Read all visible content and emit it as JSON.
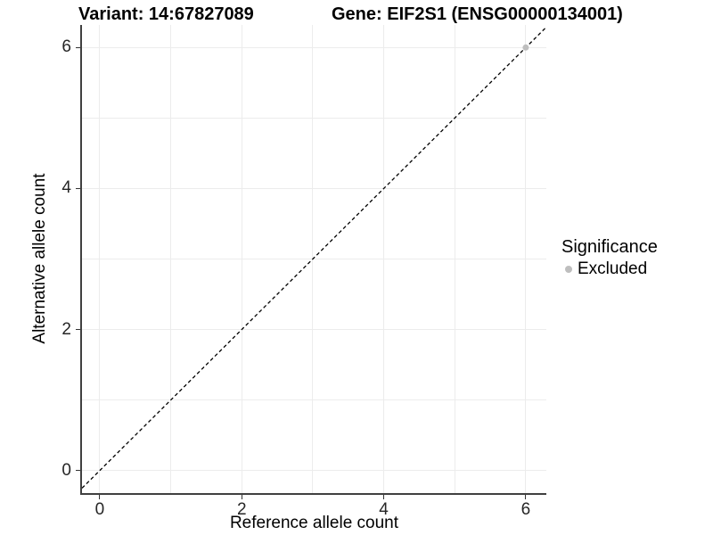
{
  "chart_data": {
    "type": "scatter",
    "title_left": "Variant: 14:67827089",
    "title_right": "Gene: EIF2S1 (ENSG00000134001)",
    "xlabel": "Reference allele count",
    "ylabel": "Alternative allele count",
    "xlim": [
      -0.25,
      6.29
    ],
    "ylim": [
      -0.32,
      6.32
    ],
    "x_ticks": [
      0,
      2,
      4,
      6
    ],
    "y_ticks": [
      0,
      2,
      4,
      6
    ],
    "x_gridlines": [
      0,
      1,
      2,
      3,
      4,
      5,
      6
    ],
    "y_gridlines": [
      0,
      1,
      2,
      3,
      4,
      5,
      6
    ],
    "grid_on": true,
    "grid_color": "#ececec",
    "axis_color": "#404040",
    "identity_line": {
      "style": "dashed",
      "slope": 1,
      "intercept": 0,
      "color": "#000000"
    },
    "series": [
      {
        "name": "Excluded",
        "color": "#bebebe",
        "point_radius": 3.5,
        "points": [
          [
            6,
            6
          ]
        ]
      }
    ],
    "legend": {
      "title": "Significance",
      "position": "right",
      "items": [
        {
          "label": "Excluded",
          "color": "#bebebe",
          "marker": "dot-icon"
        }
      ]
    }
  }
}
